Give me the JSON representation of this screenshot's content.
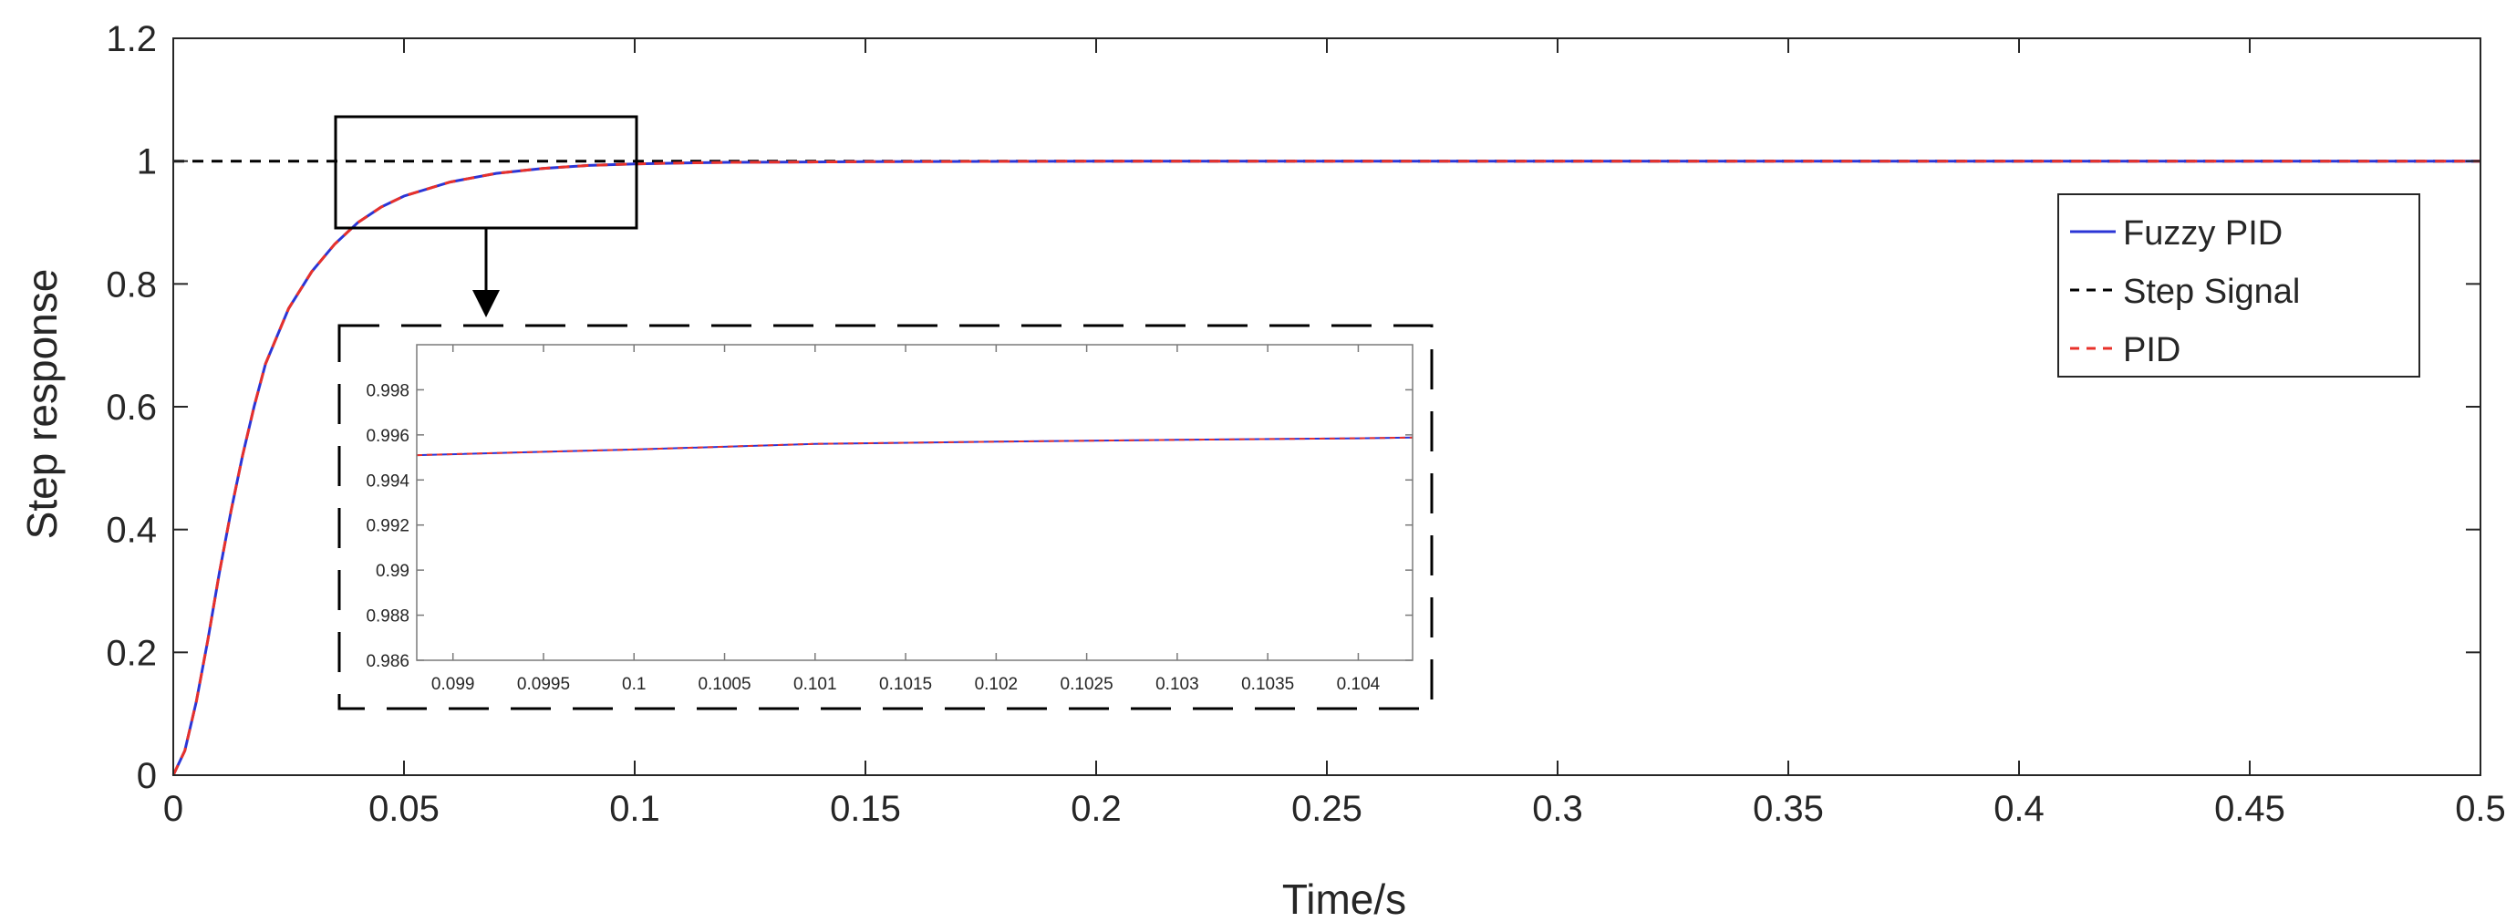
{
  "chart_data": [
    {
      "type": "line",
      "title": "",
      "xlabel": "Time/s",
      "ylabel": "Step response",
      "xlim": [
        0,
        0.5
      ],
      "ylim": [
        0,
        1.2
      ],
      "x_ticks": [
        "0",
        "0.05",
        "0.1",
        "0.15",
        "0.2",
        "0.25",
        "0.3",
        "0.35",
        "0.4",
        "0.45",
        "0.5"
      ],
      "y_ticks": [
        "0",
        "0.2",
        "0.4",
        "0.6",
        "0.8",
        "1",
        "1.2"
      ],
      "grid": false,
      "legend_position": "right",
      "series": [
        {
          "name": "Fuzzy PID",
          "color": "#2b35d6",
          "style": "solid",
          "x": [
            0,
            0.0025,
            0.005,
            0.0075,
            0.01,
            0.0125,
            0.015,
            0.0175,
            0.02,
            0.025,
            0.03,
            0.035,
            0.04,
            0.045,
            0.05,
            0.06,
            0.07,
            0.08,
            0.09,
            0.1,
            0.11,
            0.12,
            0.15,
            0.2,
            0.25,
            0.3,
            0.35,
            0.4,
            0.45,
            0.5
          ],
          "y": [
            0,
            0.04,
            0.12,
            0.22,
            0.33,
            0.43,
            0.52,
            0.6,
            0.67,
            0.76,
            0.82,
            0.865,
            0.9,
            0.925,
            0.943,
            0.966,
            0.98,
            0.988,
            0.993,
            0.9955,
            0.997,
            0.998,
            0.999,
            1,
            1,
            1,
            1,
            1,
            1,
            1
          ]
        },
        {
          "name": "Step Signal",
          "color": "#000000",
          "style": "dashed",
          "x": [
            0,
            0.5
          ],
          "y": [
            1,
            1
          ]
        },
        {
          "name": "PID",
          "color": "#e8312a",
          "style": "dashed",
          "x": [
            0,
            0.0025,
            0.005,
            0.0075,
            0.01,
            0.0125,
            0.015,
            0.0175,
            0.02,
            0.025,
            0.03,
            0.035,
            0.04,
            0.045,
            0.05,
            0.06,
            0.07,
            0.08,
            0.09,
            0.1,
            0.11,
            0.12,
            0.15,
            0.2,
            0.25,
            0.3,
            0.35,
            0.4,
            0.45,
            0.5
          ],
          "y": [
            0,
            0.04,
            0.12,
            0.22,
            0.33,
            0.43,
            0.52,
            0.6,
            0.67,
            0.76,
            0.82,
            0.865,
            0.9,
            0.925,
            0.943,
            0.966,
            0.98,
            0.988,
            0.993,
            0.9955,
            0.997,
            0.998,
            0.999,
            1,
            1,
            1,
            1,
            1,
            1,
            1
          ]
        }
      ]
    },
    {
      "type": "line",
      "title": "",
      "xlabel": "",
      "ylabel": "",
      "xlim": [
        0.0988,
        0.1043
      ],
      "ylim": [
        0.986,
        1.0
      ],
      "x_ticks": [
        "0.099",
        "0.0995",
        "0.1",
        "0.1005",
        "0.101",
        "0.1015",
        "0.102",
        "0.1025",
        "0.103",
        "0.1035",
        "0.104"
      ],
      "y_ticks": [
        "0.986",
        "0.988",
        "0.99",
        "0.992",
        "0.994",
        "0.996",
        "0.998"
      ],
      "grid": false,
      "series": [
        {
          "name": "Fuzzy PID",
          "color": "#2b35d6",
          "style": "solid",
          "x": [
            0.0988,
            0.0995,
            0.1,
            0.101,
            0.102,
            0.103,
            0.104,
            0.1043
          ],
          "y": [
            0.9951,
            0.99525,
            0.99535,
            0.9956,
            0.9957,
            0.99578,
            0.99585,
            0.99588
          ]
        },
        {
          "name": "PID",
          "color": "#e8312a",
          "style": "dashed",
          "x": [
            0.0988,
            0.0995,
            0.1,
            0.101,
            0.102,
            0.103,
            0.104,
            0.1043
          ],
          "y": [
            0.9951,
            0.99525,
            0.99535,
            0.9956,
            0.9957,
            0.99578,
            0.99585,
            0.99588
          ]
        }
      ]
    }
  ]
}
